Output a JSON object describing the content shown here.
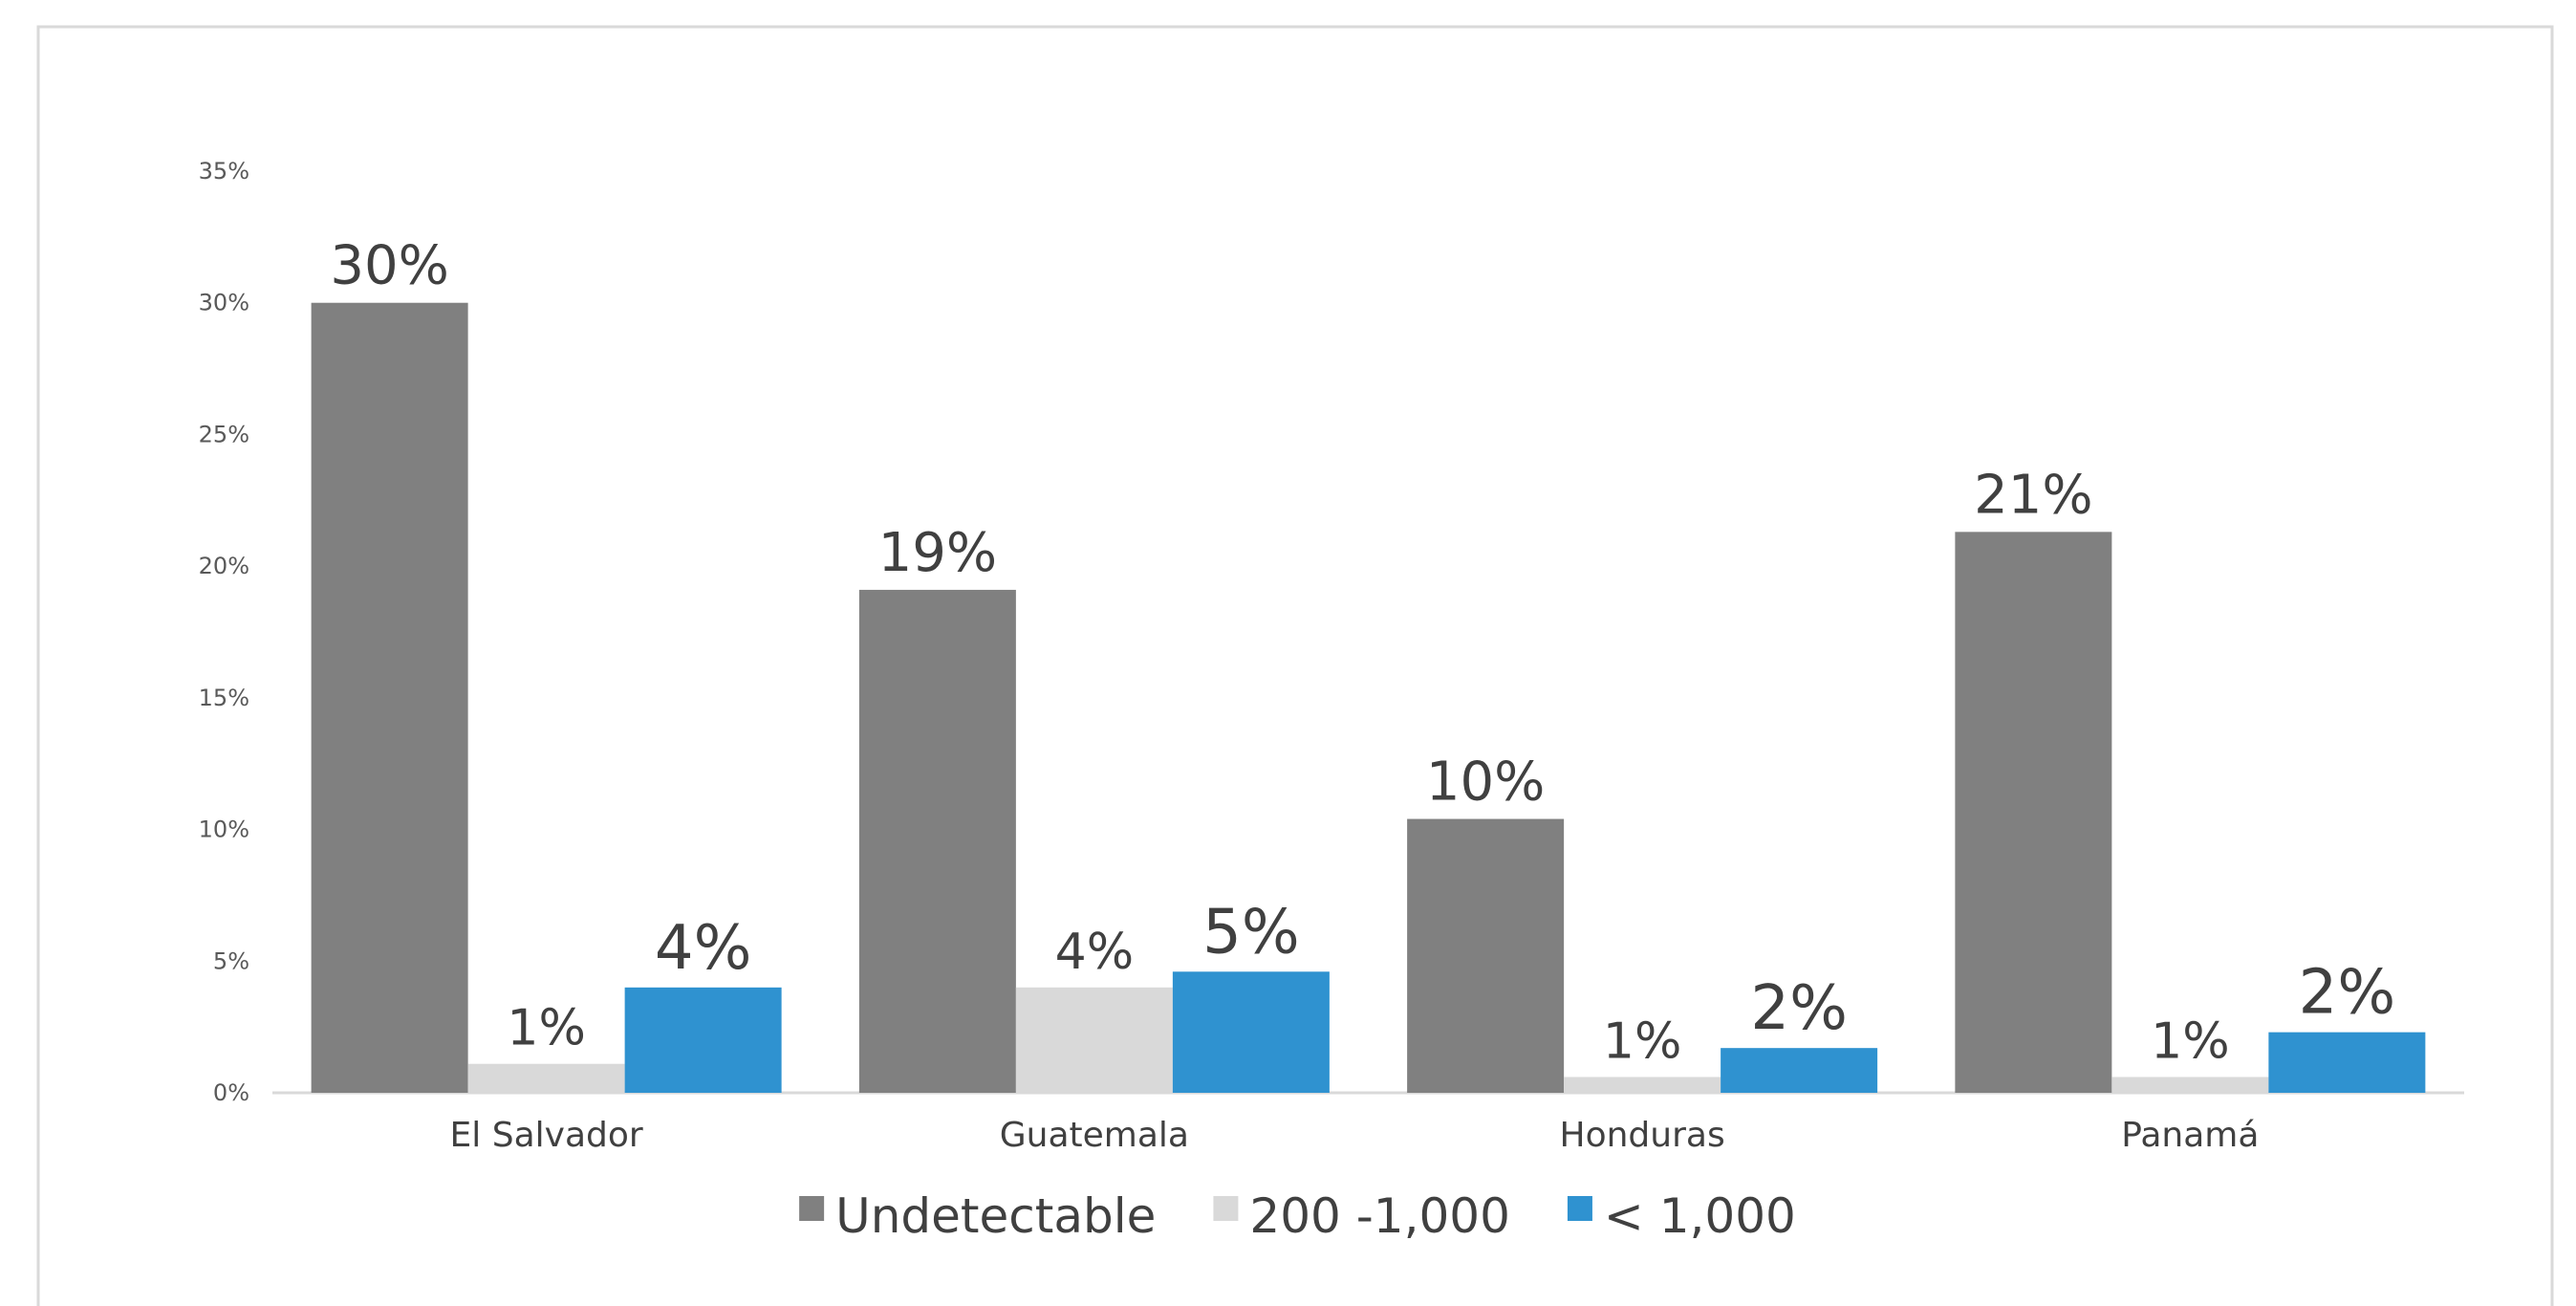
{
  "chart_data": {
    "type": "bar",
    "categories": [
      "El Salvador",
      "Guatemala",
      "Honduras",
      "Panamá"
    ],
    "series": [
      {
        "name": "Undetectable",
        "color": "#808080",
        "values": [
          30,
          19.1,
          10.4,
          21.3
        ],
        "labels": [
          "30%",
          "19%",
          "10%",
          "21%"
        ]
      },
      {
        "name": "200 -1,000",
        "color": "#d9d9d9",
        "values": [
          1.1,
          4.0,
          0.6,
          0.6
        ],
        "labels": [
          "1%",
          "4%",
          "1%",
          "1%"
        ]
      },
      {
        "name": "< 1,000",
        "color": "#2f92d0",
        "values": [
          4.0,
          4.6,
          1.7,
          2.3
        ],
        "labels": [
          "4%",
          "5%",
          "2%",
          "2%"
        ]
      }
    ],
    "ylim": [
      0,
      35
    ],
    "yticks": [
      0,
      5,
      10,
      15,
      20,
      25,
      30,
      35
    ],
    "ytick_labels": [
      "0%",
      "5%",
      "10%",
      "15%",
      "20%",
      "25%",
      "30%",
      "35%"
    ],
    "grid": false,
    "legend_position": "bottom"
  }
}
